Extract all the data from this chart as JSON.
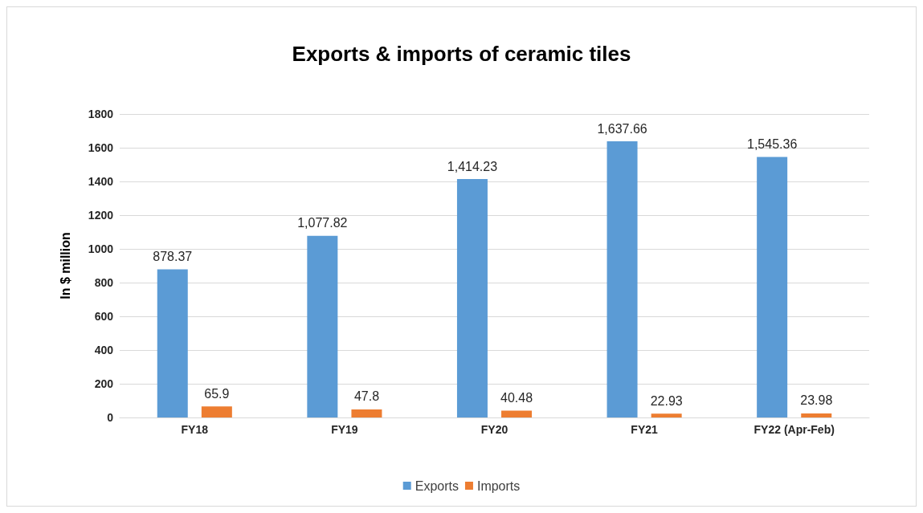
{
  "chart_data": {
    "type": "bar",
    "title": "Exports & imports of ceramic tiles",
    "ylabel": "In $ million",
    "categories": [
      "FY18",
      "FY19",
      "FY20",
      "FY21",
      "FY22 (Apr-Feb)"
    ],
    "series": [
      {
        "name": "Exports",
        "color": "#5b9bd5",
        "values": [
          878.37,
          1077.82,
          1414.23,
          1637.66,
          1545.36
        ],
        "value_labels": [
          "878.37",
          "1,077.82",
          "1,414.23",
          "1,637.66",
          "1,545.36"
        ]
      },
      {
        "name": "Imports",
        "color": "#ed7d31",
        "values": [
          65.9,
          47.8,
          40.48,
          22.93,
          23.98
        ],
        "value_labels": [
          "65.9",
          "47.8",
          "40.48",
          "22.93",
          "23.98"
        ]
      }
    ],
    "ylim": [
      0,
      1800
    ],
    "yticks": [
      0,
      200,
      400,
      600,
      800,
      1000,
      1200,
      1400,
      1600,
      1800
    ],
    "grid": "y",
    "legend": "bottom"
  }
}
